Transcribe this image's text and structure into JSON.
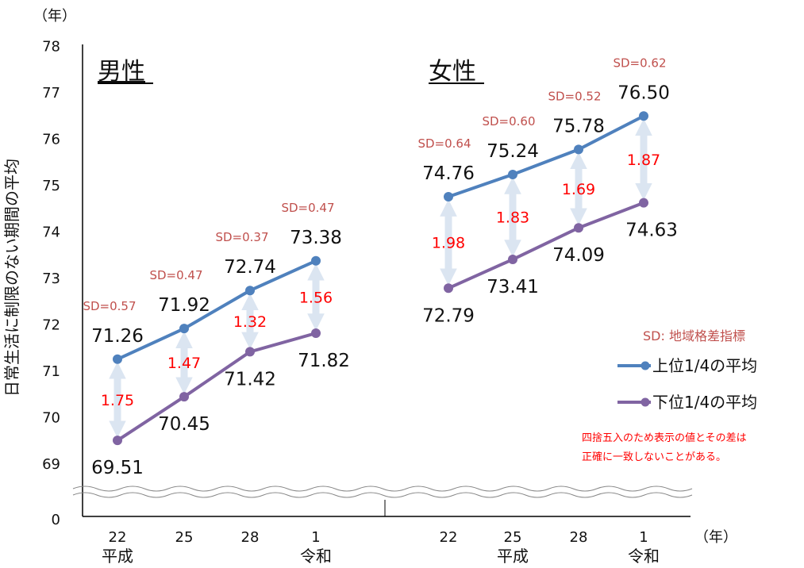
{
  "colors": {
    "upper": "#4f81bd",
    "lower": "#8064a2",
    "diff": "#ff0000",
    "sd": "#c0504d",
    "arrow": "#dbe5f1",
    "axis": "#000000"
  },
  "chart_data": {
    "type": "line",
    "ylabel": "日常生活に制限のない期間の平均",
    "yunit": "（年）",
    "xunit": "（年）",
    "yticks": [
      "78",
      "77",
      "76",
      "75",
      "74",
      "73",
      "72",
      "71",
      "70",
      "69",
      "0"
    ],
    "ylim": [
      69,
      78
    ],
    "axis_break": true,
    "panels": [
      {
        "title": "男性",
        "categories": [
          {
            "year": "22",
            "era": "平成"
          },
          {
            "year": "25",
            "era": ""
          },
          {
            "year": "28",
            "era": ""
          },
          {
            "year": "1",
            "era": "令和"
          }
        ],
        "upper": [
          71.26,
          71.92,
          72.74,
          73.38
        ],
        "upper_labels": [
          "71.26",
          "71.92",
          "72.74",
          "73.38"
        ],
        "lower": [
          69.51,
          70.45,
          71.42,
          71.82
        ],
        "lower_labels": [
          "69.51",
          "70.45",
          "71.42",
          "71.82"
        ],
        "diff_labels": [
          "1.75",
          "1.47",
          "1.32",
          "1.56"
        ],
        "sd_labels": [
          "SD=0.57",
          "SD=0.47",
          "SD=0.37",
          "SD=0.47"
        ]
      },
      {
        "title": "女性",
        "categories": [
          {
            "year": "22",
            "era": ""
          },
          {
            "year": "25",
            "era": "平成"
          },
          {
            "year": "28",
            "era": ""
          },
          {
            "year": "1",
            "era": "令和"
          }
        ],
        "upper": [
          74.76,
          75.24,
          75.78,
          76.5
        ],
        "upper_labels": [
          "74.76",
          "75.24",
          "75.78",
          "76.50"
        ],
        "lower": [
          72.79,
          73.41,
          74.09,
          74.63
        ],
        "lower_labels": [
          "72.79",
          "73.41",
          "74.09",
          "74.63"
        ],
        "diff_labels": [
          "1.98",
          "1.83",
          "1.69",
          "1.87"
        ],
        "sd_labels": [
          "SD=0.64",
          "SD=0.60",
          "SD=0.52",
          "SD=0.62"
        ]
      }
    ],
    "legend": {
      "title": "SD: 地域格差指標",
      "items": [
        "上位1/4の平均",
        "下位1/4の平均"
      ]
    },
    "note": [
      "四捨五入のため表示の値とその差は",
      "正確に一致しないことがある。"
    ]
  }
}
